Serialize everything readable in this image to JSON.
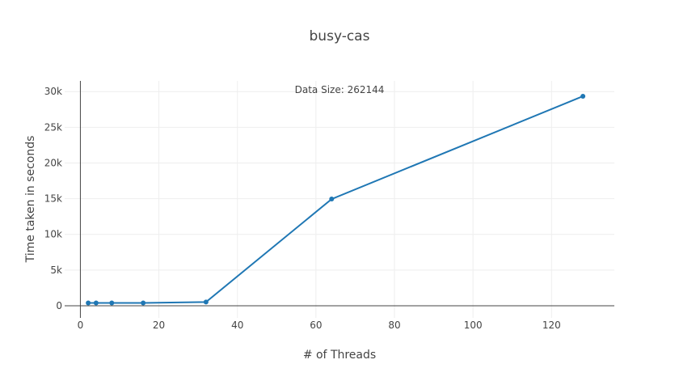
{
  "chart_data": {
    "type": "line",
    "title": "busy-cas",
    "xlabel": "# of Threads",
    "ylabel": "Time taken in seconds",
    "annotation": "Data Size: 262144",
    "xlim": [
      -4,
      136
    ],
    "ylim": [
      -1700,
      31500
    ],
    "x_ticks": [
      0,
      20,
      40,
      60,
      80,
      100,
      120
    ],
    "x_tick_labels": [
      "0",
      "20",
      "40",
      "60",
      "80",
      "100",
      "120"
    ],
    "y_ticks": [
      0,
      5000,
      10000,
      15000,
      20000,
      25000,
      30000
    ],
    "y_tick_labels": [
      "0",
      "5k",
      "10k",
      "15k",
      "20k",
      "25k",
      "30k"
    ],
    "grid": true,
    "color": "#1f77b4",
    "series": [
      {
        "x": [
          2,
          4,
          8,
          16,
          32,
          64,
          128
        ],
        "y": [
          400,
          400,
          400,
          400,
          520,
          14950,
          29350
        ]
      }
    ]
  }
}
